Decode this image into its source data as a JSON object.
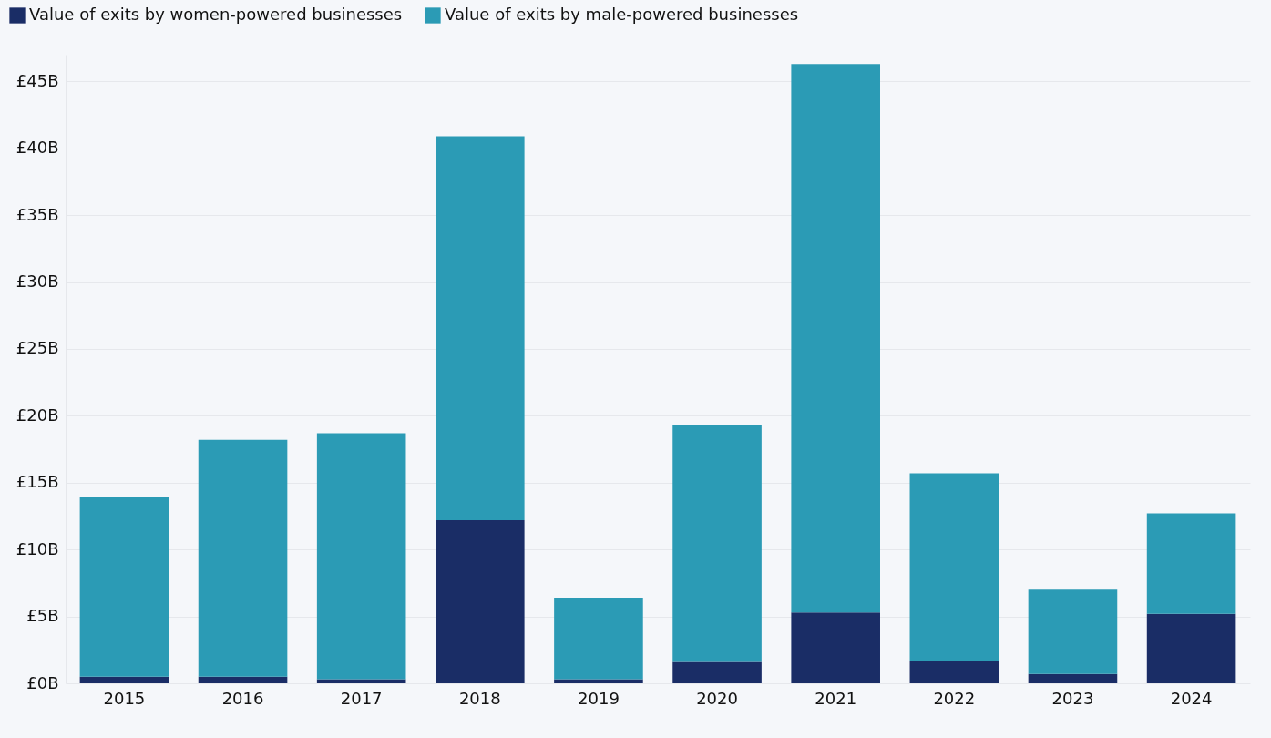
{
  "chart_data": {
    "type": "bar",
    "stacked": true,
    "categories": [
      "2015",
      "2016",
      "2017",
      "2018",
      "2019",
      "2020",
      "2021",
      "2022",
      "2023",
      "2024"
    ],
    "series": [
      {
        "name": "Value of exits by women-powered businesses",
        "color": "#1a2d66",
        "values": [
          0.5,
          0.5,
          0.3,
          12.2,
          0.3,
          1.6,
          5.3,
          1.7,
          0.7,
          5.2
        ]
      },
      {
        "name": "Value of exits by male-powered businesses",
        "color": "#2b9bb5",
        "values": [
          13.4,
          17.7,
          18.4,
          28.7,
          6.1,
          17.7,
          41.0,
          14.0,
          6.3,
          7.5
        ]
      }
    ],
    "ylim": [
      0,
      47
    ],
    "yticks": [
      {
        "value": 0,
        "label": "£0B"
      },
      {
        "value": 5,
        "label": "£5B"
      },
      {
        "value": 10,
        "label": "£10B"
      },
      {
        "value": 15,
        "label": "£15B"
      },
      {
        "value": 20,
        "label": "£20B"
      },
      {
        "value": 25,
        "label": "£25B"
      },
      {
        "value": 30,
        "label": "£30B"
      },
      {
        "value": 35,
        "label": "£35B"
      },
      {
        "value": 40,
        "label": "£40B"
      },
      {
        "value": 45,
        "label": "£45B"
      }
    ],
    "grid": "y",
    "legend": "top left"
  }
}
